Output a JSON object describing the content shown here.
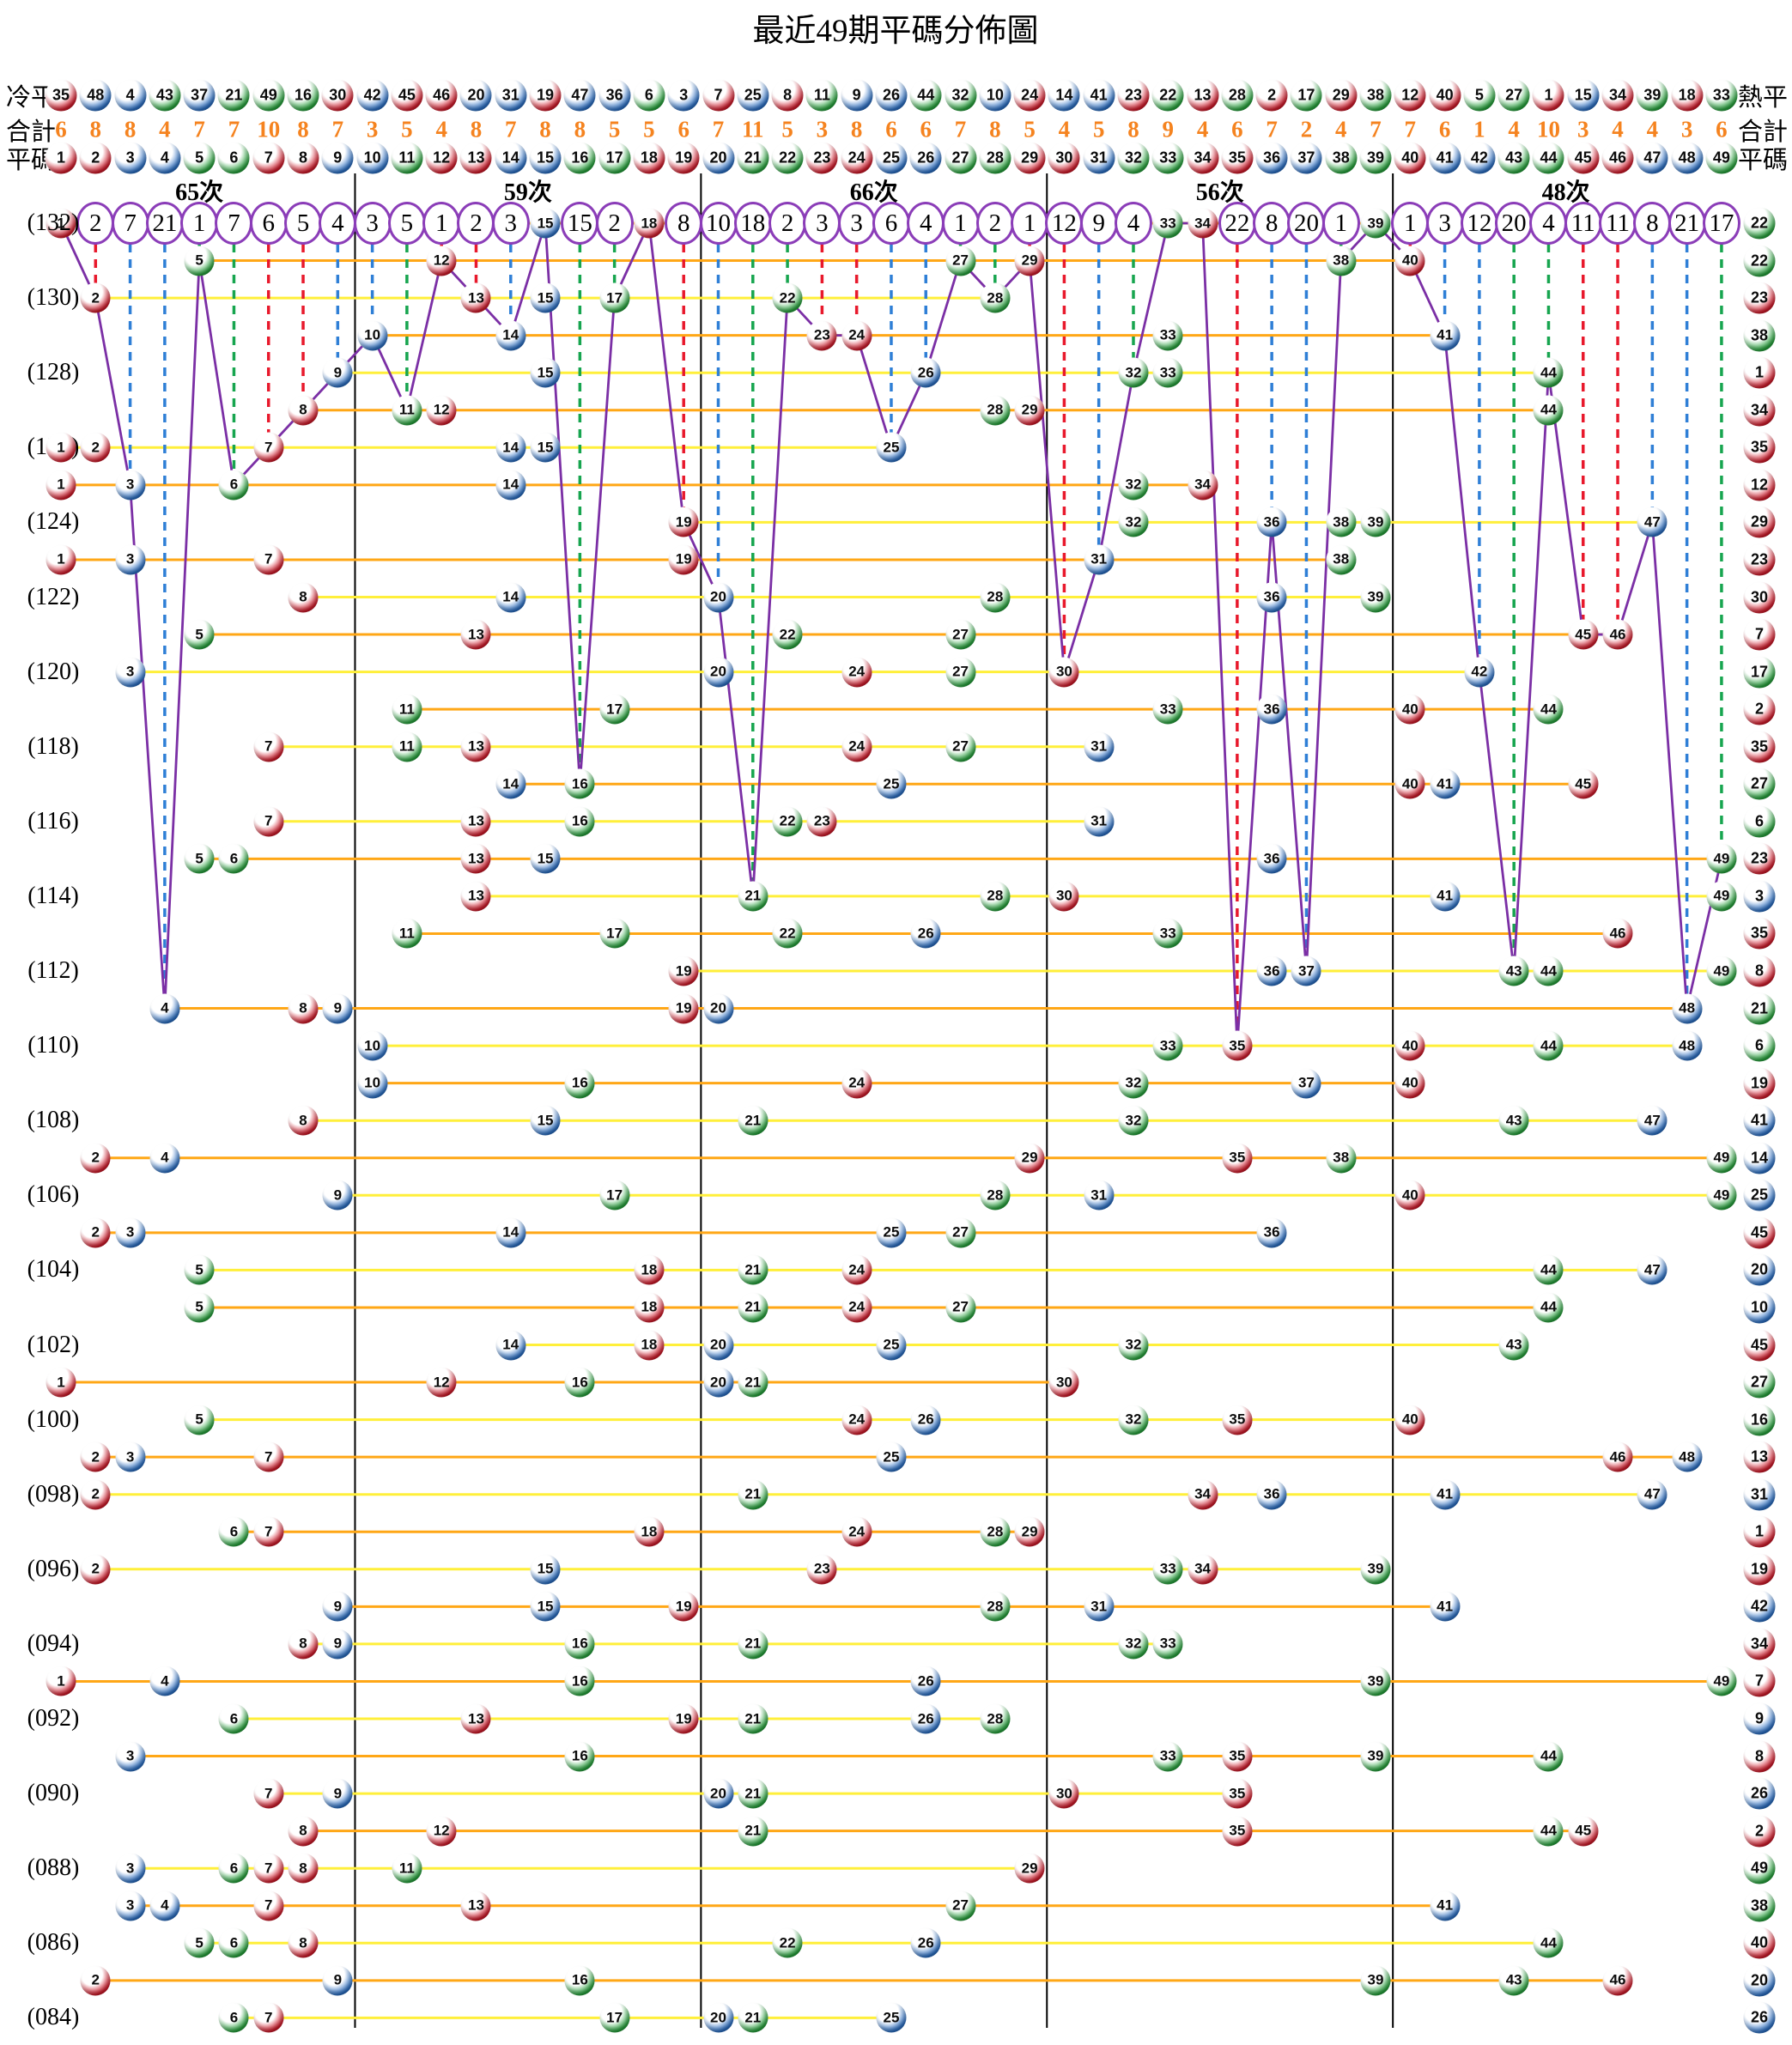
{
  "title": "最近49期平碼分佈圖",
  "header": {
    "left_labels": [
      "冷平",
      "合計",
      "平碼"
    ],
    "right_labels": [
      "熱平",
      "合計",
      "平碼"
    ],
    "cold_order": [
      35,
      48,
      4,
      43,
      37,
      21,
      49,
      16,
      30,
      42,
      45,
      46,
      20,
      31,
      19,
      47,
      36,
      6,
      3,
      7,
      25,
      8,
      11,
      9,
      26,
      44,
      32,
      10,
      24,
      14,
      41,
      23,
      22,
      13,
      28,
      2,
      17,
      29,
      38,
      12,
      40,
      5,
      27,
      1,
      15,
      34,
      39,
      18,
      33
    ],
    "totals": [
      6,
      8,
      8,
      4,
      7,
      7,
      10,
      8,
      7,
      3,
      5,
      4,
      8,
      7,
      8,
      8,
      5,
      5,
      6,
      7,
      11,
      5,
      3,
      8,
      6,
      6,
      7,
      8,
      5,
      4,
      5,
      8,
      9,
      4,
      6,
      7,
      2,
      4,
      7,
      7,
      6,
      1,
      4,
      10,
      3,
      4,
      4,
      3,
      6
    ],
    "numbers": [
      1,
      2,
      3,
      4,
      5,
      6,
      7,
      8,
      9,
      10,
      11,
      12,
      13,
      14,
      15,
      16,
      17,
      18,
      19,
      20,
      21,
      22,
      23,
      24,
      25,
      26,
      27,
      28,
      29,
      30,
      31,
      32,
      33,
      34,
      35,
      36,
      37,
      38,
      39,
      40,
      41,
      42,
      43,
      44,
      45,
      46,
      47,
      48,
      49
    ],
    "section_labels": [
      "65次",
      "59次",
      "66次",
      "56次",
      "48次"
    ]
  },
  "colors": {
    "red": "#d11a2a",
    "blue": "#2b6fc4",
    "green": "#27a23c",
    "red_dark": "#7d0a14",
    "blue_dark": "#0c3e7c",
    "green_dark": "#0e6b27",
    "dash_red": "#e8192c",
    "dash_blue": "#2f7fd6",
    "dash_green": "#17a54f",
    "yellow_line": "#ffef3a",
    "orange_line": "#ffa716",
    "purple": "#7b2fa5",
    "totals_text": "#f5831f",
    "red_numbers": [
      1,
      2,
      7,
      8,
      12,
      13,
      18,
      19,
      23,
      24,
      29,
      30,
      34,
      35,
      40,
      45,
      46
    ],
    "blue_numbers": [
      3,
      4,
      9,
      10,
      14,
      15,
      20,
      25,
      26,
      31,
      36,
      37,
      41,
      42,
      47,
      48
    ],
    "green_numbers": [
      5,
      6,
      11,
      16,
      17,
      21,
      22,
      27,
      28,
      32,
      33,
      38,
      39,
      43,
      44,
      49
    ]
  },
  "chart_data": {
    "type": "scatter",
    "description": "49 columns = numbers 1-49; 49 rows = draws 132 down to 084; each row lists the 6 drawn flat codes plus the right-column ball; gaps = periods since last hit shown in the top circle row (0 = drawn in period 132)",
    "gaps": [
      0,
      2,
      7,
      21,
      1,
      7,
      6,
      5,
      4,
      3,
      5,
      1,
      2,
      3,
      0,
      15,
      2,
      0,
      8,
      10,
      18,
      2,
      3,
      3,
      6,
      4,
      1,
      2,
      1,
      12,
      9,
      4,
      0,
      0,
      22,
      8,
      20,
      1,
      0,
      1,
      3,
      12,
      20,
      4,
      11,
      11,
      8,
      21,
      17
    ],
    "rows": [
      {
        "p": 132,
        "label": "(132)",
        "balls": [
          1,
          15,
          18,
          33,
          34,
          39
        ],
        "special": 22
      },
      {
        "p": 131,
        "label": "",
        "balls": [
          5,
          12,
          27,
          29,
          38,
          40
        ],
        "special": 22
      },
      {
        "p": 130,
        "label": "(130)",
        "balls": [
          2,
          13,
          15,
          17,
          22,
          28
        ],
        "special": 23
      },
      {
        "p": 129,
        "label": "",
        "balls": [
          10,
          14,
          23,
          24,
          33,
          41
        ],
        "special": 38
      },
      {
        "p": 128,
        "label": "(128)",
        "balls": [
          9,
          15,
          26,
          32,
          33,
          44
        ],
        "special": 1
      },
      {
        "p": 127,
        "label": "",
        "balls": [
          8,
          11,
          12,
          28,
          29,
          44
        ],
        "special": 34
      },
      {
        "p": 126,
        "label": "(126)",
        "balls": [
          1,
          2,
          7,
          14,
          15,
          25
        ],
        "special": 35
      },
      {
        "p": 125,
        "label": "",
        "balls": [
          1,
          3,
          6,
          14,
          32,
          34
        ],
        "special": 12
      },
      {
        "p": 124,
        "label": "(124)",
        "balls": [
          19,
          32,
          36,
          38,
          39,
          47
        ],
        "special": 29
      },
      {
        "p": 123,
        "label": "",
        "balls": [
          1,
          3,
          7,
          19,
          31,
          38
        ],
        "special": 23
      },
      {
        "p": 122,
        "label": "(122)",
        "balls": [
          8,
          14,
          20,
          28,
          36,
          39
        ],
        "special": 30
      },
      {
        "p": 121,
        "label": "",
        "balls": [
          5,
          13,
          22,
          27,
          45,
          46
        ],
        "special": 7
      },
      {
        "p": 120,
        "label": "(120)",
        "balls": [
          3,
          20,
          24,
          27,
          30,
          42
        ],
        "special": 17
      },
      {
        "p": 119,
        "label": "",
        "balls": [
          11,
          17,
          33,
          36,
          40,
          44
        ],
        "special": 2
      },
      {
        "p": 118,
        "label": "(118)",
        "balls": [
          7,
          11,
          13,
          24,
          27,
          31
        ],
        "special": 35
      },
      {
        "p": 117,
        "label": "",
        "balls": [
          14,
          16,
          25,
          40,
          41,
          45
        ],
        "special": 27
      },
      {
        "p": 116,
        "label": "(116)",
        "balls": [
          7,
          13,
          16,
          22,
          23,
          31
        ],
        "special": 6
      },
      {
        "p": 115,
        "label": "",
        "balls": [
          5,
          6,
          13,
          15,
          36,
          49
        ],
        "special": 23
      },
      {
        "p": 114,
        "label": "(114)",
        "balls": [
          13,
          21,
          28,
          30,
          41,
          49
        ],
        "special": 3
      },
      {
        "p": 113,
        "label": "",
        "balls": [
          11,
          17,
          22,
          26,
          33,
          46
        ],
        "special": 35
      },
      {
        "p": 112,
        "label": "(112)",
        "balls": [
          19,
          36,
          37,
          43,
          44,
          49
        ],
        "special": 8
      },
      {
        "p": 111,
        "label": "",
        "balls": [
          4,
          8,
          9,
          19,
          20,
          48
        ],
        "special": 21
      },
      {
        "p": 110,
        "label": "(110)",
        "balls": [
          10,
          33,
          35,
          40,
          44,
          48
        ],
        "special": 6
      },
      {
        "p": 109,
        "label": "",
        "balls": [
          10,
          16,
          24,
          32,
          37,
          40
        ],
        "special": 19
      },
      {
        "p": 108,
        "label": "(108)",
        "balls": [
          8,
          15,
          21,
          32,
          43,
          47
        ],
        "special": 41
      },
      {
        "p": 107,
        "label": "",
        "balls": [
          2,
          4,
          29,
          35,
          38,
          49
        ],
        "special": 14
      },
      {
        "p": 106,
        "label": "(106)",
        "balls": [
          9,
          17,
          28,
          31,
          40,
          49
        ],
        "special": 25
      },
      {
        "p": 105,
        "label": "",
        "balls": [
          2,
          3,
          14,
          25,
          27,
          36
        ],
        "special": 45
      },
      {
        "p": 104,
        "label": "(104)",
        "balls": [
          5,
          18,
          21,
          24,
          44,
          47
        ],
        "special": 20
      },
      {
        "p": 103,
        "label": "",
        "balls": [
          5,
          18,
          21,
          24,
          27,
          44
        ],
        "special": 10
      },
      {
        "p": 102,
        "label": "(102)",
        "balls": [
          14,
          18,
          20,
          25,
          32,
          43
        ],
        "special": 45
      },
      {
        "p": 101,
        "label": "",
        "balls": [
          1,
          12,
          16,
          20,
          21,
          30
        ],
        "special": 27
      },
      {
        "p": 100,
        "label": "(100)",
        "balls": [
          5,
          24,
          26,
          32,
          35,
          40
        ],
        "special": 16
      },
      {
        "p": 99,
        "label": "",
        "balls": [
          2,
          3,
          7,
          25,
          46,
          48
        ],
        "special": 13
      },
      {
        "p": 98,
        "label": "(098)",
        "balls": [
          2,
          21,
          34,
          36,
          41,
          47
        ],
        "special": 31
      },
      {
        "p": 97,
        "label": "",
        "balls": [
          6,
          7,
          18,
          24,
          28,
          29
        ],
        "special": 1
      },
      {
        "p": 96,
        "label": "(096)",
        "balls": [
          2,
          15,
          23,
          33,
          34,
          39
        ],
        "special": 19
      },
      {
        "p": 95,
        "label": "",
        "balls": [
          9,
          15,
          19,
          28,
          31,
          41
        ],
        "special": 42
      },
      {
        "p": 94,
        "label": "(094)",
        "balls": [
          8,
          9,
          16,
          21,
          32,
          33
        ],
        "special": 34
      },
      {
        "p": 93,
        "label": "",
        "balls": [
          1,
          4,
          16,
          26,
          39,
          49
        ],
        "special": 7
      },
      {
        "p": 92,
        "label": "(092)",
        "balls": [
          6,
          13,
          19,
          21,
          26,
          28
        ],
        "special": 9
      },
      {
        "p": 91,
        "label": "",
        "balls": [
          3,
          16,
          33,
          35,
          39,
          44
        ],
        "special": 8
      },
      {
        "p": 90,
        "label": "(090)",
        "balls": [
          7,
          9,
          20,
          21,
          30,
          35
        ],
        "special": 26
      },
      {
        "p": 89,
        "label": "",
        "balls": [
          8,
          12,
          21,
          35,
          44,
          45
        ],
        "special": 2
      },
      {
        "p": 88,
        "label": "(088)",
        "balls": [
          3,
          6,
          7,
          8,
          11,
          29
        ],
        "special": 49
      },
      {
        "p": 87,
        "label": "",
        "balls": [
          3,
          4,
          7,
          13,
          27,
          41
        ],
        "special": 38
      },
      {
        "p": 86,
        "label": "(086)",
        "balls": [
          5,
          6,
          8,
          22,
          26,
          44
        ],
        "special": 40
      },
      {
        "p": 85,
        "label": "",
        "balls": [
          2,
          9,
          16,
          39,
          43,
          46
        ],
        "special": 20
      },
      {
        "p": 84,
        "label": "(084)",
        "balls": [
          6,
          7,
          17,
          20,
          21,
          25
        ],
        "special": 26
      }
    ]
  }
}
